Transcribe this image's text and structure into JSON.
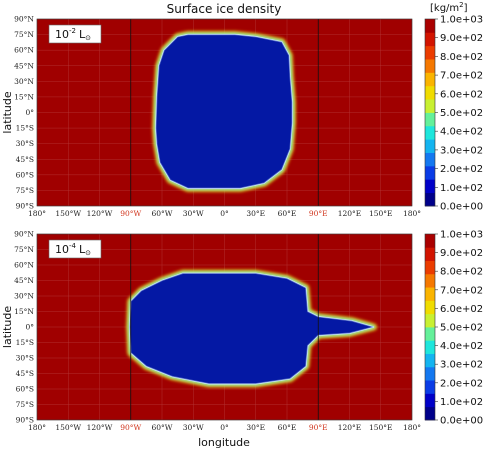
{
  "chart_data": [
    {
      "type": "heatmap",
      "title": "Surface ice density",
      "panel_label": {
        "base": "10",
        "exp": "-2",
        "unit": "L",
        "sub": "⊙"
      },
      "xlabel": "",
      "ylabel": "latitude",
      "x_ticks": [
        "180°",
        "150°W",
        "120°W",
        "90°W",
        "60°W",
        "30°W",
        "0°",
        "30°E",
        "60°E",
        "90°E",
        "120°E",
        "150°E",
        "180°"
      ],
      "y_ticks": [
        "90°N",
        "75°N",
        "60°N",
        "45°N",
        "30°N",
        "15°N",
        "0°",
        "15°S",
        "30°S",
        "45°S",
        "60°S",
        "75°S",
        "90°S"
      ],
      "highlight_ticks": [
        "90°W",
        "90°E"
      ],
      "highlight_color": "#d0341c",
      "xlim": [
        -180,
        180
      ],
      "ylim": [
        -90,
        90
      ],
      "background_value": 1000,
      "ice_region_value": 0,
      "ice_region_lonlat": [
        [
          -45,
          73
        ],
        [
          -35,
          75
        ],
        [
          10,
          75
        ],
        [
          30,
          73
        ],
        [
          55,
          68
        ],
        [
          62,
          55
        ],
        [
          63,
          35
        ],
        [
          65,
          10
        ],
        [
          65,
          -10
        ],
        [
          63,
          -35
        ],
        [
          55,
          -55
        ],
        [
          38,
          -68
        ],
        [
          15,
          -73
        ],
        [
          -35,
          -73
        ],
        [
          -52,
          -65
        ],
        [
          -62,
          -48
        ],
        [
          -65,
          -30
        ],
        [
          -66,
          -15
        ],
        [
          -65,
          15
        ],
        [
          -63,
          45
        ],
        [
          -58,
          60
        ]
      ],
      "meridian_lines": [
        -90,
        90
      ],
      "colorbar": {
        "unit_base": "[kg/m",
        "unit_exp": "2",
        "unit_close": "]",
        "ticks": [
          "1.0e+03",
          "9.0e+02",
          "8.0e+02",
          "7.0e+02",
          "6.0e+02",
          "5.0e+02",
          "4.0e+02",
          "3.0e+02",
          "2.0e+02",
          "1.0e+02",
          "0.0e+00"
        ],
        "colors": [
          "#00008a",
          "#0000c8",
          "#0a3ce6",
          "#1478f0",
          "#14b4f0",
          "#1ee6dc",
          "#64f09a",
          "#c8f032",
          "#f0dc00",
          "#fab400",
          "#f57800",
          "#eb3c00",
          "#d21400",
          "#aa0000"
        ]
      }
    },
    {
      "type": "heatmap",
      "title": "",
      "panel_label": {
        "base": "10",
        "exp": "-4",
        "unit": "L",
        "sub": "⊙"
      },
      "xlabel": "longitude",
      "ylabel": "latitude",
      "x_ticks": [
        "180°",
        "150°W",
        "120°W",
        "90°W",
        "60°W",
        "30°W",
        "0°",
        "30°E",
        "60°E",
        "90°E",
        "120°E",
        "150°E",
        "180°"
      ],
      "y_ticks": [
        "90°N",
        "75°N",
        "60°N",
        "45°N",
        "30°N",
        "15°N",
        "0°",
        "15°S",
        "30°S",
        "45°S",
        "60°S",
        "75°S",
        "90°S"
      ],
      "highlight_ticks": [
        "90°W",
        "90°E"
      ],
      "highlight_color": "#d0341c",
      "xlim": [
        -180,
        180
      ],
      "ylim": [
        -90,
        90
      ],
      "background_value": 1000,
      "ice_region_value": 0,
      "ice_region_lonlat": [
        [
          -60,
          45
        ],
        [
          -40,
          52
        ],
        [
          30,
          52
        ],
        [
          60,
          47
        ],
        [
          78,
          38
        ],
        [
          80,
          15
        ],
        [
          90,
          10
        ],
        [
          122,
          6
        ],
        [
          143,
          0
        ],
        [
          120,
          -6
        ],
        [
          90,
          -8
        ],
        [
          80,
          -18
        ],
        [
          78,
          -38
        ],
        [
          63,
          -50
        ],
        [
          30,
          -55
        ],
        [
          -15,
          -55
        ],
        [
          -50,
          -48
        ],
        [
          -75,
          -38
        ],
        [
          -90,
          -25
        ],
        [
          -91,
          0
        ],
        [
          -90,
          25
        ],
        [
          -80,
          35
        ]
      ],
      "meridian_lines": [
        -90,
        90
      ],
      "colorbar": {
        "unit_base": "[kg/m",
        "unit_exp": "2",
        "unit_close": "]",
        "ticks": [
          "1.0e+03",
          "9.0e+02",
          "8.0e+02",
          "7.0e+02",
          "6.0e+02",
          "5.0e+02",
          "4.0e+02",
          "3.0e+02",
          "2.0e+02",
          "1.0e+02",
          "0.0e+00"
        ],
        "colors": [
          "#00008a",
          "#0000c8",
          "#0a3ce6",
          "#1478f0",
          "#14b4f0",
          "#1ee6dc",
          "#64f09a",
          "#c8f032",
          "#f0dc00",
          "#fab400",
          "#f57800",
          "#eb3c00",
          "#d21400",
          "#aa0000"
        ]
      }
    }
  ]
}
